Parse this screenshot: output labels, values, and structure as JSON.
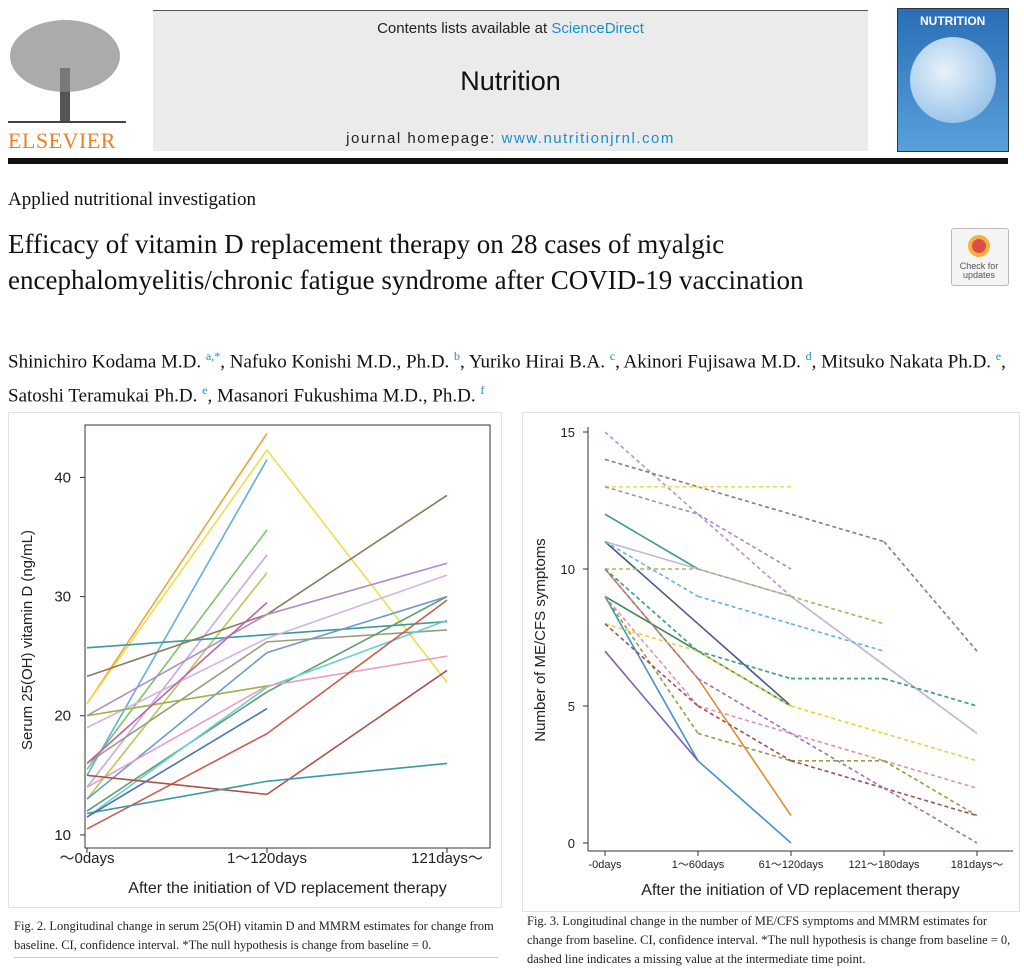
{
  "header": {
    "contents_prefix": "Contents lists available at ",
    "contents_link": "ScienceDirect",
    "journal": "Nutrition",
    "homepage_prefix": "journal homepage: ",
    "homepage_link": "www.nutritionjrnl.com",
    "publisher": "ELSEVIER",
    "cover_title": "NUTRITION",
    "check_updates": "Check for updates"
  },
  "article": {
    "type": "Applied nutritional investigation",
    "title": "Efficacy of vitamin D replacement therapy on 28 cases of myalgic encephalomyelitis/chronic fatigue syndrome after COVID-19 vaccination",
    "authors": [
      {
        "name": "Shinichiro Kodama M.D. ",
        "aff": "a,*",
        "sep": ", "
      },
      {
        "name": "Nafuko Konishi M.D., Ph.D. ",
        "aff": "b",
        "sep": ", "
      },
      {
        "name": "Yuriko Hirai B.A. ",
        "aff": "c",
        "sep": ", "
      },
      {
        "name": "Akinori Fujisawa M.D. ",
        "aff": "d",
        "sep": ", "
      },
      {
        "name": "Mitsuko Nakata Ph.D. ",
        "aff": "e",
        "sep": ", "
      },
      {
        "name": "Satoshi Teramukai Ph.D. ",
        "aff": "e",
        "sep": ", "
      },
      {
        "name": "Masanori Fukushima M.D., Ph.D. ",
        "aff": "f"
      }
    ]
  },
  "chart_data": [
    {
      "type": "line",
      "x_label": "After the initiation of VD replacement therapy",
      "y_label": "Serum 25(OH) vitamin D (ng/mL)",
      "categories": [
        "～0days",
        "1～120days",
        "121days～"
      ],
      "ylim": [
        8.9,
        44.4
      ],
      "yticks": [
        10,
        20,
        30,
        40
      ],
      "series": [
        {
          "color": "#f0a43c",
          "values": [
            21,
            43.7,
            null
          ]
        },
        {
          "color": "#f2dc4c",
          "values": [
            21,
            42.3,
            22.8
          ]
        },
        {
          "color": "#5fb0e0",
          "values": [
            15,
            41.5,
            null
          ]
        },
        {
          "color": "#7cc46a",
          "values": [
            15.5,
            35.6,
            null
          ]
        },
        {
          "color": "#c9a8e0",
          "values": [
            14,
            33.5,
            null
          ]
        },
        {
          "color": "#b7c95a",
          "values": [
            13,
            32,
            null
          ]
        },
        {
          "color": "#3a9a9a",
          "values": [
            25.7,
            26.8,
            27.9
          ]
        },
        {
          "color": "#8a7a5a",
          "values": [
            23.3,
            28.5,
            38.5
          ]
        },
        {
          "color": "#b08ad0",
          "values": [
            20,
            28.5,
            32.8
          ]
        },
        {
          "color": "#d2b2e8",
          "values": [
            19,
            26.5,
            31.8
          ]
        },
        {
          "color": "#9a9a80",
          "values": [
            16,
            26.2,
            27.2
          ]
        },
        {
          "color": "#6a9ad0",
          "values": [
            13,
            25.3,
            30
          ]
        },
        {
          "color": "#5aa070",
          "values": [
            12,
            22,
            30
          ]
        },
        {
          "color": "#6ad0d0",
          "values": [
            11.5,
            22.4,
            28
          ]
        },
        {
          "color": "#e8a0c0",
          "values": [
            14,
            22.5,
            25
          ]
        },
        {
          "color": "#d05a4a",
          "values": [
            10.5,
            18.5,
            29.7
          ]
        },
        {
          "color": "#b0504a",
          "values": [
            15,
            13.4,
            23.8
          ]
        },
        {
          "color": "#3a9aa0",
          "values": [
            11.8,
            14.5,
            16
          ]
        },
        {
          "color": "#4a70c0",
          "values": [
            11.5,
            20.6,
            null
          ]
        },
        {
          "color": "#a0b040",
          "values": [
            20,
            22.5,
            null
          ]
        },
        {
          "color": "#c060b0",
          "values": [
            16,
            29.5,
            null
          ]
        }
      ]
    },
    {
      "type": "line",
      "x_label": "After the initiation of VD replacement therapy",
      "y_label": "Number of ME/CFS symptoms",
      "categories": [
        "-0days",
        "1～60days",
        "61～120days",
        "121～180days",
        "181days～"
      ],
      "ylim": [
        0,
        15
      ],
      "yticks": [
        0,
        5,
        10,
        15
      ],
      "series": [
        {
          "color": "#b890d8",
          "dashed": true,
          "values": [
            15,
            null,
            9,
            null,
            4
          ]
        },
        {
          "color": "#8a7a7a",
          "dashed": true,
          "values": [
            14,
            13,
            null,
            11,
            7
          ]
        },
        {
          "color": "#e8e060",
          "dashed": true,
          "values": [
            13,
            null,
            13,
            null,
            null
          ]
        },
        {
          "color": "#a090c0",
          "dashed": true,
          "values": [
            13,
            12,
            10,
            null,
            null
          ]
        },
        {
          "color": "#3a9a8a",
          "dashed": false,
          "values": [
            12,
            10,
            null,
            null,
            null
          ]
        },
        {
          "color": "#c0b8d8",
          "dashed": false,
          "values": [
            11,
            null,
            9,
            null,
            4
          ]
        },
        {
          "color": "#4a5a8a",
          "dashed": false,
          "values": [
            11,
            8,
            5,
            null,
            null
          ]
        },
        {
          "color": "#60b0e0",
          "dashed": true,
          "values": [
            11,
            9,
            8,
            7,
            null
          ]
        },
        {
          "color": "#b0b060",
          "dashed": true,
          "values": [
            10,
            10,
            9,
            8,
            null
          ]
        },
        {
          "color": "#e08a30",
          "dashed": false,
          "values": [
            10,
            6,
            1,
            null,
            null
          ]
        },
        {
          "color": "#5aa070",
          "dashed": true,
          "values": [
            10,
            7,
            6,
            6,
            5
          ]
        },
        {
          "color": "#3a8a5a",
          "dashed": false,
          "values": [
            9,
            7,
            5,
            null,
            null
          ]
        },
        {
          "color": "#e090b0",
          "dashed": true,
          "values": [
            9,
            5,
            4,
            3,
            2
          ]
        },
        {
          "color": "#4a90d0",
          "dashed": false,
          "values": [
            9,
            3,
            0,
            null,
            null
          ]
        },
        {
          "color": "#8060b0",
          "dashed": false,
          "values": [
            7,
            3,
            null,
            null,
            null
          ]
        },
        {
          "color": "#90a040",
          "dashed": true,
          "values": [
            9,
            4,
            3,
            3,
            1
          ]
        },
        {
          "color": "#e8d040",
          "dashed": true,
          "values": [
            8,
            7,
            5,
            4,
            3
          ]
        },
        {
          "color": "#a05050",
          "dashed": true,
          "values": [
            8,
            5,
            3,
            2,
            1
          ]
        },
        {
          "color": "#a070c0",
          "dashed": true,
          "values": [
            10,
            6,
            null,
            2,
            0
          ]
        },
        {
          "color": "#40a0a0",
          "dashed": true,
          "values": [
            10,
            7,
            6,
            6,
            5
          ]
        }
      ]
    }
  ],
  "captions": [
    "Fig. 2. Longitudinal change in serum 25(OH) vitamin D and MMRM estimates for change from baseline. CI, confidence interval. *The null hypothesis is change from baseline = 0.",
    "Fig. 3. Longitudinal change in the number of ME/CFS symptoms and MMRM estimates for change from baseline. CI, confidence interval. *The null hypothesis is change from baseline = 0, dashed line indicates a missing value at the intermediate time point."
  ]
}
